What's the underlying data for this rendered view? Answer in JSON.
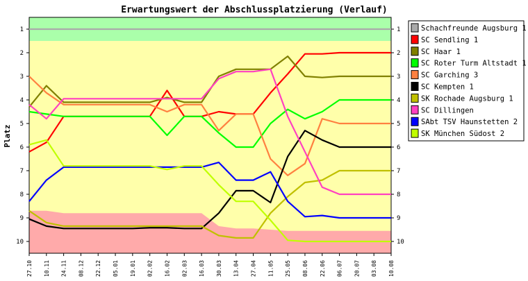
{
  "chart_data": {
    "type": "line",
    "title": "Erwartungswert der Abschlussplatzierung (Verlauf)",
    "ylabel": "Platz",
    "xlabel": "",
    "ylim": [
      10.5,
      0.5
    ],
    "y_ticks": [
      "1",
      "2",
      "3",
      "4",
      "5",
      "6",
      "7",
      "8",
      "9",
      "10"
    ],
    "categories": [
      "27.10",
      "10.11",
      "24.11",
      "08.12",
      "22.12",
      "05.01",
      "19.01",
      "02.02",
      "16.02",
      "02.03",
      "16.03",
      "30.03",
      "13.04",
      "27.04",
      "11.05",
      "25.05",
      "08.06",
      "22.06",
      "06.07",
      "20.07",
      "03.08",
      "10.08"
    ],
    "background_bands": [
      {
        "color": "#aaffaa",
        "band": "promotion (Platz 1)"
      },
      {
        "color": "#ffffaa",
        "band": "mid table"
      },
      {
        "color": "#ffaaaa",
        "band": "relegation"
      }
    ],
    "relegation_top": [
      8.7,
      8.7,
      8.8,
      8.8,
      8.8,
      8.8,
      8.8,
      8.8,
      8.8,
      8.8,
      8.8,
      9.35,
      9.45,
      9.45,
      9.5,
      9.55,
      9.55,
      9.55,
      9.55,
      9.55,
      9.55,
      9.55
    ],
    "grid": false,
    "legend_position": "right",
    "series": [
      {
        "name": "Schachfreunde Augsburg 1",
        "color": "#aaaaaa",
        "values": [
          1,
          1,
          1,
          1,
          1,
          1,
          1,
          1,
          1,
          1,
          1,
          1,
          1,
          1,
          1,
          1,
          1,
          1,
          1,
          1,
          1,
          1
        ]
      },
      {
        "name": "SC Sendling 1",
        "color": "#ff0000",
        "values": [
          6.2,
          5.8,
          4.7,
          4.7,
          4.7,
          4.7,
          4.7,
          4.7,
          3.6,
          4.7,
          4.7,
          4.5,
          4.6,
          4.6,
          3.7,
          2.9,
          2.05,
          2.05,
          2.0,
          2.0,
          2.0,
          2.0
        ]
      },
      {
        "name": "SC Haar 1",
        "color": "#808000",
        "values": [
          4.3,
          3.4,
          4.1,
          4.1,
          4.1,
          4.1,
          4.1,
          4.1,
          3.9,
          4.1,
          4.1,
          3.0,
          2.7,
          2.7,
          2.7,
          2.15,
          3.0,
          3.05,
          3.0,
          3.0,
          3.0,
          3.0
        ]
      },
      {
        "name": "SC Roter Turm Altstadt 1",
        "color": "#00ff00",
        "values": [
          4.5,
          4.6,
          4.7,
          4.7,
          4.7,
          4.7,
          4.7,
          4.7,
          5.5,
          4.7,
          4.7,
          5.4,
          6.0,
          6.0,
          5.0,
          4.4,
          4.8,
          4.5,
          4.0,
          4.0,
          4.0,
          4.0
        ]
      },
      {
        "name": "SC Garching 3",
        "color": "#ff8040",
        "values": [
          3.0,
          3.7,
          4.2,
          4.2,
          4.2,
          4.2,
          4.2,
          4.2,
          4.5,
          4.2,
          4.2,
          5.3,
          4.6,
          4.6,
          6.5,
          7.2,
          6.7,
          4.8,
          5.0,
          5.0,
          5.0,
          5.0
        ]
      },
      {
        "name": "SC Kempten 1",
        "color": "#000000",
        "values": [
          9.05,
          9.35,
          9.45,
          9.45,
          9.45,
          9.45,
          9.45,
          9.42,
          9.42,
          9.45,
          9.45,
          8.8,
          7.85,
          7.85,
          8.35,
          6.4,
          5.3,
          5.7,
          6.0,
          6.0,
          6.0,
          6.0
        ]
      },
      {
        "name": "SK Rochade Augsburg 1",
        "color": "#c0c000",
        "values": [
          8.7,
          9.2,
          9.35,
          9.35,
          9.35,
          9.35,
          9.35,
          9.35,
          9.35,
          9.35,
          9.35,
          9.75,
          9.85,
          9.85,
          8.8,
          8.1,
          7.5,
          7.4,
          7.0,
          7.0,
          7.0,
          7.0
        ]
      },
      {
        "name": "SC Dillingen",
        "color": "#ff40c0",
        "values": [
          4.2,
          4.8,
          3.95,
          3.95,
          3.95,
          3.95,
          3.95,
          3.95,
          3.95,
          3.95,
          3.95,
          3.1,
          2.8,
          2.8,
          2.7,
          4.7,
          6.2,
          7.7,
          8.0,
          8.0,
          8.0,
          8.0
        ]
      },
      {
        "name": "SAbt TSV Haunstetten 2",
        "color": "#0000ff",
        "values": [
          8.3,
          7.4,
          6.85,
          6.85,
          6.85,
          6.85,
          6.85,
          6.85,
          6.85,
          6.85,
          6.85,
          6.65,
          7.4,
          7.4,
          7.05,
          8.3,
          8.95,
          8.9,
          9.0,
          9.0,
          9.0,
          9.0
        ]
      },
      {
        "name": "SK München Südost 2",
        "color": "#c0ff00",
        "values": [
          5.9,
          5.7,
          6.8,
          6.8,
          6.8,
          6.8,
          6.8,
          6.8,
          6.95,
          6.8,
          6.8,
          7.6,
          8.3,
          8.3,
          9.1,
          9.95,
          10.0,
          10.0,
          10.0,
          10.0,
          10.0,
          10.0
        ]
      }
    ]
  }
}
